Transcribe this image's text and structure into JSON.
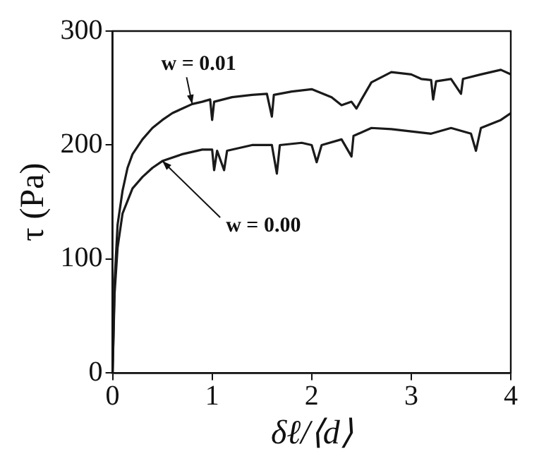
{
  "chart_data": {
    "type": "line",
    "xlabel": "δℓ/⟨d⟩",
    "ylabel": "τ (Pa)",
    "xlim": [
      0,
      4
    ],
    "ylim": [
      0,
      300
    ],
    "xticks": [
      0,
      1,
      2,
      3,
      4
    ],
    "yticks": [
      0,
      100,
      200,
      300
    ],
    "grid": false,
    "legend": false,
    "marker": "none",
    "line_style": "solid",
    "series": [
      {
        "color": "#1a1a1a",
        "x": [
          0,
          0.02,
          0.05,
          0.1,
          0.15,
          0.2,
          0.3,
          0.4,
          0.5,
          0.6,
          0.7,
          0.8,
          0.9,
          0.98,
          1.0,
          1.02,
          1.2,
          1.4,
          1.55,
          1.6,
          1.62,
          1.8,
          2.0,
          2.2,
          2.3,
          2.4,
          2.45,
          2.5,
          2.6,
          2.8,
          3.0,
          3.1,
          3.2,
          3.22,
          3.25,
          3.4,
          3.5,
          3.52,
          3.7,
          3.9,
          4.0
        ],
        "values": [
          0,
          80,
          130,
          160,
          180,
          192,
          205,
          215,
          222,
          228,
          232,
          236,
          238,
          240,
          222,
          238,
          242,
          244,
          245,
          225,
          244,
          247,
          249,
          242,
          235,
          238,
          232,
          240,
          255,
          264,
          262,
          258,
          257,
          240,
          256,
          258,
          245,
          258,
          262,
          266,
          262
        ]
      },
      {
        "color": "#1a1a1a",
        "x": [
          0,
          0.02,
          0.05,
          0.1,
          0.2,
          0.3,
          0.4,
          0.5,
          0.7,
          0.9,
          1.0,
          1.02,
          1.05,
          1.12,
          1.15,
          1.4,
          1.6,
          1.65,
          1.68,
          1.9,
          2.0,
          2.05,
          2.1,
          2.3,
          2.4,
          2.42,
          2.6,
          2.8,
          3.0,
          3.2,
          3.4,
          3.6,
          3.65,
          3.7,
          3.9,
          4.0
        ],
        "values": [
          0,
          70,
          110,
          140,
          162,
          172,
          180,
          186,
          192,
          196,
          196,
          178,
          195,
          178,
          195,
          200,
          200,
          175,
          200,
          202,
          200,
          185,
          200,
          205,
          190,
          208,
          215,
          214,
          212,
          210,
          215,
          210,
          195,
          215,
          222,
          228
        ]
      }
    ],
    "annotations": [
      {
        "text": "w = 0.01",
        "x": 0.8,
        "y": 236
      },
      {
        "text": "w = 0.00",
        "x": 0.5,
        "y": 186
      }
    ]
  }
}
